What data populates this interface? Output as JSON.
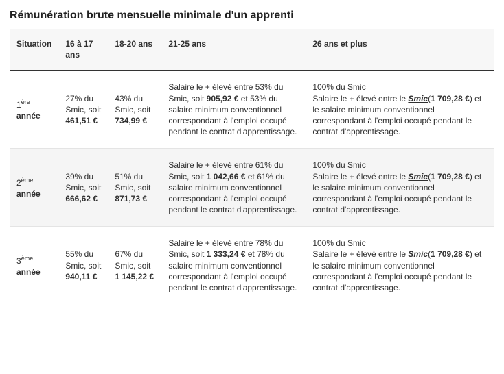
{
  "title": "Rémunération brute mensuelle minimale d'un apprenti",
  "columns": {
    "situation": "Situation",
    "c1617": "16 à 17 ans",
    "c1820": "18-20 ans",
    "c2125": "21-25 ans",
    "c26p": "26 ans et plus"
  },
  "rows": [
    {
      "label_num": "1",
      "label_ord": "ère",
      "label_annee": "année",
      "c1617_pct": "27%",
      "c1617_amt": "461,51 €",
      "c1820_pct": "43%",
      "c1820_amt": "734,99 €",
      "c2125_pct_a": "53%",
      "c2125_amt": "905,92 €",
      "c2125_pct_b": "53%",
      "c26_pct": "100%",
      "c26_smic_ref": "1 709,28 €"
    },
    {
      "label_num": "2",
      "label_ord": "ème",
      "label_annee": "année",
      "c1617_pct": "39%",
      "c1617_amt": "666,62 €",
      "c1820_pct": "51%",
      "c1820_amt": "871,73 €",
      "c2125_pct_a": "61%",
      "c2125_amt": "1 042,66 €",
      "c2125_pct_b": "61%",
      "c26_pct": "100%",
      "c26_smic_ref": "1 709,28 €"
    },
    {
      "label_num": "3",
      "label_ord": "ème",
      "label_annee": "année",
      "c1617_pct": "55%",
      "c1617_amt": "940,11 €",
      "c1820_pct": "67%",
      "c1820_amt": "1 145,22 €",
      "c2125_pct_a": "78%",
      "c2125_amt": "1 333,24 €",
      "c2125_pct_b": "78%",
      "c26_pct": "100%",
      "c26_smic_ref": "1 709,28 €"
    }
  ],
  "phrases": {
    "du_smic_soit": " du Smic, soit ",
    "salaire_prefix": "Salaire le + élevé entre ",
    "du_smic_soit2": " du Smic, soit ",
    "et": " et ",
    "conv_suffix": " du salaire minimum conventionnel correspondant à l'emploi occupé pendant le contrat d'apprentissage.",
    "c26_prefix": " du Smic",
    "c26_line2a": "Salaire le + élevé entre le ",
    "smic_word": "Smic",
    "c26_paren_open": "(",
    "c26_paren_close": ")",
    "c26_suffix": " et le salaire minimum conventionnel correspondant à l'emploi occupé pendant le contrat d'apprentissage."
  },
  "style": {
    "header_bg": "#f7f7f7",
    "row_even_bg": "#f5f5f5",
    "border_strong": "#333333",
    "border_light": "#e4e4e4",
    "text_color": "#303030",
    "font_size_pt": 9
  }
}
